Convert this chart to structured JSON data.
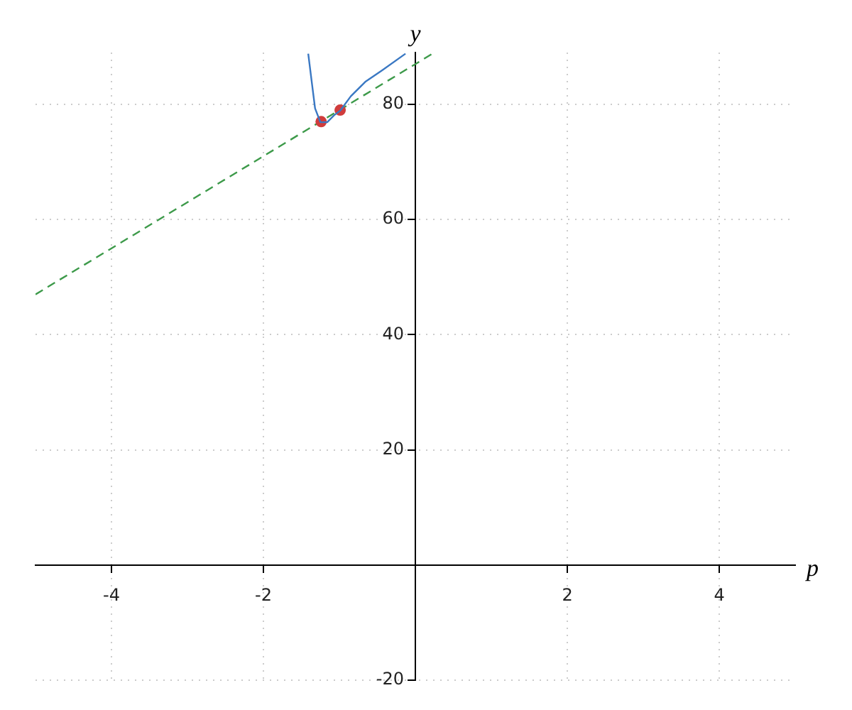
{
  "chart_data": {
    "type": "line",
    "xlabel": "p",
    "ylabel": "y",
    "xlim": [
      -5,
      5
    ],
    "ylim": [
      -20,
      89
    ],
    "xticks": [
      -4,
      -2,
      2,
      4
    ],
    "yticks": [
      -20,
      20,
      40,
      60,
      80
    ],
    "grid": true,
    "series": [
      {
        "color": "#3a78c3",
        "x": [
          -1.41,
          -1.36,
          -1.32,
          -1.25,
          -1.16,
          -1.07,
          -0.99,
          -0.85,
          -0.66,
          -0.44,
          -0.13
        ],
        "values": [
          88.8,
          83.5,
          79.3,
          76.9,
          76.9,
          78.1,
          78.9,
          81.4,
          83.9,
          85.9,
          88.8
        ],
        "marker": "none",
        "line_style": "solid"
      },
      {
        "type": "scatter",
        "color": "#d03c3c",
        "x": [
          -1.24,
          -0.99
        ],
        "values": [
          77,
          79
        ],
        "marker": "circle"
      },
      {
        "type": "line",
        "color": "#3d9a4a",
        "x": [
          -5,
          0.25
        ],
        "values": [
          47,
          89
        ],
        "marker": "none",
        "line_style": "dashed"
      }
    ]
  }
}
